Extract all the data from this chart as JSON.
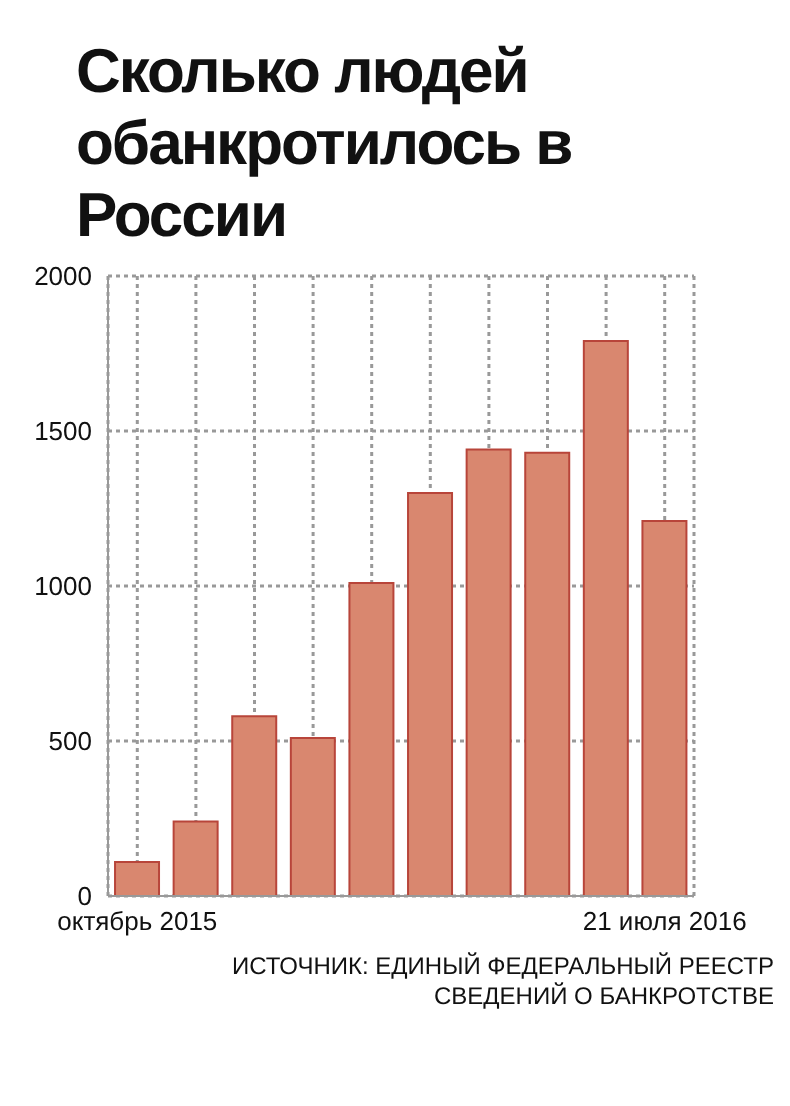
{
  "chart_data": {
    "type": "bar",
    "title": "Сколько людей обанкротилось в России",
    "categories": [
      "октябрь 2015",
      null,
      null,
      null,
      null,
      null,
      null,
      null,
      null,
      "21 июля 2016"
    ],
    "values": [
      110,
      240,
      580,
      510,
      1010,
      1300,
      1440,
      1430,
      1790,
      1210
    ],
    "color": "#d9876f",
    "ylim": [
      0,
      2000
    ],
    "yticks": [
      0,
      500,
      1000,
      1500,
      2000
    ],
    "grid": true,
    "annotations": [
      "ИСТОЧНИК: ЕДИНЫЙ ФЕДЕРАЛЬНЫЙ РЕЕСТР СВЕДЕНИЙ О БАНКРОТСТВЕ"
    ]
  }
}
